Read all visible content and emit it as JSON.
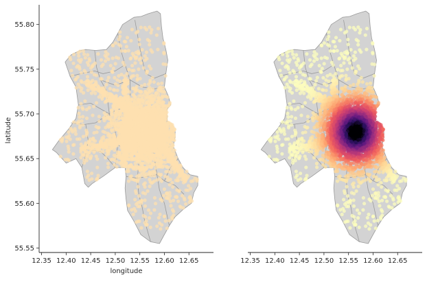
{
  "figure": {
    "panels": [
      {
        "id": "left",
        "shows_y_axis": true,
        "shows_x_label": true,
        "color_mode": "uniform"
      },
      {
        "id": "right",
        "shows_y_axis": false,
        "shows_x_label": false,
        "color_mode": "density"
      }
    ],
    "xlabel": "longitude",
    "ylabel": "latitude",
    "x_ticks": [
      "12.35",
      "12.40",
      "12.45",
      "12.50",
      "12.55",
      "12.60",
      "12.65"
    ],
    "y_ticks": [
      "55.80",
      "55.75",
      "55.70",
      "55.65",
      "55.60",
      "55.55"
    ],
    "colors": {
      "district_fill": "#d3d3d3",
      "district_edge": "#9a9a9a",
      "uniform_point": "#fde0b0",
      "density_colormap": "magma"
    }
  },
  "chart_data": {
    "type": "scatter",
    "title": "",
    "xlabel": "longitude",
    "ylabel": "latitude",
    "xlim": [
      12.345,
      12.7
    ],
    "ylim": [
      55.545,
      55.822
    ],
    "grid": false,
    "legend": "none",
    "boundary": [
      [
        12.515,
        55.8
      ],
      [
        12.538,
        55.808
      ],
      [
        12.553,
        55.809
      ],
      [
        12.567,
        55.812
      ],
      [
        12.585,
        55.815
      ],
      [
        12.592,
        55.812
      ],
      [
        12.594,
        55.798
      ],
      [
        12.597,
        55.785
      ],
      [
        12.603,
        55.772
      ],
      [
        12.607,
        55.76
      ],
      [
        12.603,
        55.745
      ],
      [
        12.6,
        55.73
      ],
      [
        12.608,
        55.72
      ],
      [
        12.613,
        55.71
      ],
      [
        12.605,
        55.705
      ],
      [
        12.606,
        55.692
      ],
      [
        12.616,
        55.688
      ],
      [
        12.622,
        55.682
      ],
      [
        12.622,
        55.674
      ],
      [
        12.618,
        55.664
      ],
      [
        12.628,
        55.65
      ],
      [
        12.638,
        55.64
      ],
      [
        12.652,
        55.632
      ],
      [
        12.668,
        55.63
      ],
      [
        12.668,
        55.62
      ],
      [
        12.66,
        55.612
      ],
      [
        12.655,
        55.6
      ],
      [
        12.638,
        55.593
      ],
      [
        12.622,
        55.585
      ],
      [
        12.61,
        55.575
      ],
      [
        12.598,
        55.563
      ],
      [
        12.59,
        55.555
      ],
      [
        12.572,
        55.557
      ],
      [
        12.552,
        55.565
      ],
      [
        12.538,
        55.58
      ],
      [
        12.525,
        55.592
      ],
      [
        12.522,
        55.605
      ],
      [
        12.52,
        55.617
      ],
      [
        12.522,
        55.63
      ],
      [
        12.52,
        55.64
      ],
      [
        12.5,
        55.64
      ],
      [
        12.475,
        55.63
      ],
      [
        12.453,
        55.622
      ],
      [
        12.445,
        55.618
      ],
      [
        12.438,
        55.622
      ],
      [
        12.432,
        55.64
      ],
      [
        12.42,
        55.65
      ],
      [
        12.4,
        55.645
      ],
      [
        12.38,
        55.657
      ],
      [
        12.372,
        55.66
      ],
      [
        12.385,
        55.67
      ],
      [
        12.405,
        55.683
      ],
      [
        12.42,
        55.695
      ],
      [
        12.425,
        55.71
      ],
      [
        12.42,
        55.73
      ],
      [
        12.408,
        55.742
      ],
      [
        12.398,
        55.758
      ],
      [
        12.41,
        55.766
      ],
      [
        12.428,
        55.771
      ],
      [
        12.44,
        55.772
      ],
      [
        12.46,
        55.771
      ],
      [
        12.482,
        55.772
      ],
      [
        12.495,
        55.78
      ],
      [
        12.505,
        55.79
      ]
    ],
    "district_lines": [
      [
        [
          12.425,
          55.71
        ],
        [
          12.45,
          55.712
        ],
        [
          12.472,
          55.705
        ],
        [
          12.488,
          55.7
        ],
        [
          12.505,
          55.705
        ],
        [
          12.53,
          55.708
        ],
        [
          12.555,
          55.705
        ],
        [
          12.58,
          55.708
        ],
        [
          12.606,
          55.707
        ]
      ],
      [
        [
          12.458,
          55.771
        ],
        [
          12.462,
          55.752
        ],
        [
          12.47,
          55.738
        ],
        [
          12.482,
          55.726
        ],
        [
          12.488,
          55.7
        ]
      ],
      [
        [
          12.505,
          55.79
        ],
        [
          12.512,
          55.77
        ],
        [
          12.52,
          55.755
        ],
        [
          12.53,
          55.738
        ],
        [
          12.53,
          55.708
        ]
      ],
      [
        [
          12.54,
          55.805
        ],
        [
          12.548,
          55.78
        ],
        [
          12.555,
          55.76
        ],
        [
          12.562,
          55.745
        ],
        [
          12.58,
          55.74
        ],
        [
          12.603,
          55.745
        ]
      ],
      [
        [
          12.408,
          55.742
        ],
        [
          12.43,
          55.745
        ],
        [
          12.458,
          55.748
        ],
        [
          12.475,
          55.745
        ],
        [
          12.5,
          55.748
        ],
        [
          12.52,
          55.755
        ]
      ],
      [
        [
          12.47,
          55.738
        ],
        [
          12.5,
          55.732
        ],
        [
          12.53,
          55.738
        ],
        [
          12.555,
          55.73
        ],
        [
          12.58,
          55.728
        ],
        [
          12.6,
          55.73
        ]
      ],
      [
        [
          12.41,
          55.69
        ],
        [
          12.435,
          55.688
        ],
        [
          12.46,
          55.69
        ],
        [
          12.488,
          55.7
        ]
      ],
      [
        [
          12.44,
          55.688
        ],
        [
          12.445,
          55.67
        ],
        [
          12.438,
          55.65
        ],
        [
          12.432,
          55.64
        ]
      ],
      [
        [
          12.488,
          55.7
        ],
        [
          12.5,
          55.68
        ],
        [
          12.505,
          55.665
        ],
        [
          12.5,
          55.64
        ]
      ],
      [
        [
          12.505,
          55.665
        ],
        [
          12.53,
          55.66
        ],
        [
          12.555,
          55.665
        ],
        [
          12.575,
          55.668
        ],
        [
          12.6,
          55.662
        ],
        [
          12.618,
          55.664
        ]
      ],
      [
        [
          12.445,
          55.66
        ],
        [
          12.47,
          55.658
        ],
        [
          12.485,
          55.65
        ],
        [
          12.5,
          55.64
        ]
      ],
      [
        [
          12.555,
          55.705
        ],
        [
          12.56,
          55.69
        ],
        [
          12.57,
          55.68
        ],
        [
          12.585,
          55.678
        ],
        [
          12.606,
          55.692
        ]
      ],
      [
        [
          12.522,
          55.63
        ],
        [
          12.545,
          55.628
        ],
        [
          12.565,
          55.63
        ],
        [
          12.585,
          55.632
        ],
        [
          12.6,
          55.625
        ],
        [
          12.622,
          55.62
        ],
        [
          12.64,
          55.61
        ]
      ],
      [
        [
          12.575,
          55.668
        ],
        [
          12.58,
          55.65
        ],
        [
          12.585,
          55.632
        ],
        [
          12.59,
          55.615
        ],
        [
          12.6,
          55.6
        ],
        [
          12.61,
          55.575
        ]
      ],
      [
        [
          12.545,
          55.628
        ],
        [
          12.548,
          55.61
        ],
        [
          12.555,
          55.595
        ],
        [
          12.56,
          55.58
        ],
        [
          12.572,
          55.557
        ]
      ],
      [
        [
          12.6,
          55.625
        ],
        [
          12.612,
          55.64
        ],
        [
          12.628,
          55.65
        ]
      ],
      [
        [
          12.555,
          55.665
        ],
        [
          12.548,
          55.645
        ],
        [
          12.545,
          55.628
        ]
      ]
    ],
    "points": {
      "count": 3800,
      "hotspot_center": [
        12.565,
        55.68
      ],
      "hotspot_spread": [
        0.02,
        0.012
      ]
    }
  }
}
